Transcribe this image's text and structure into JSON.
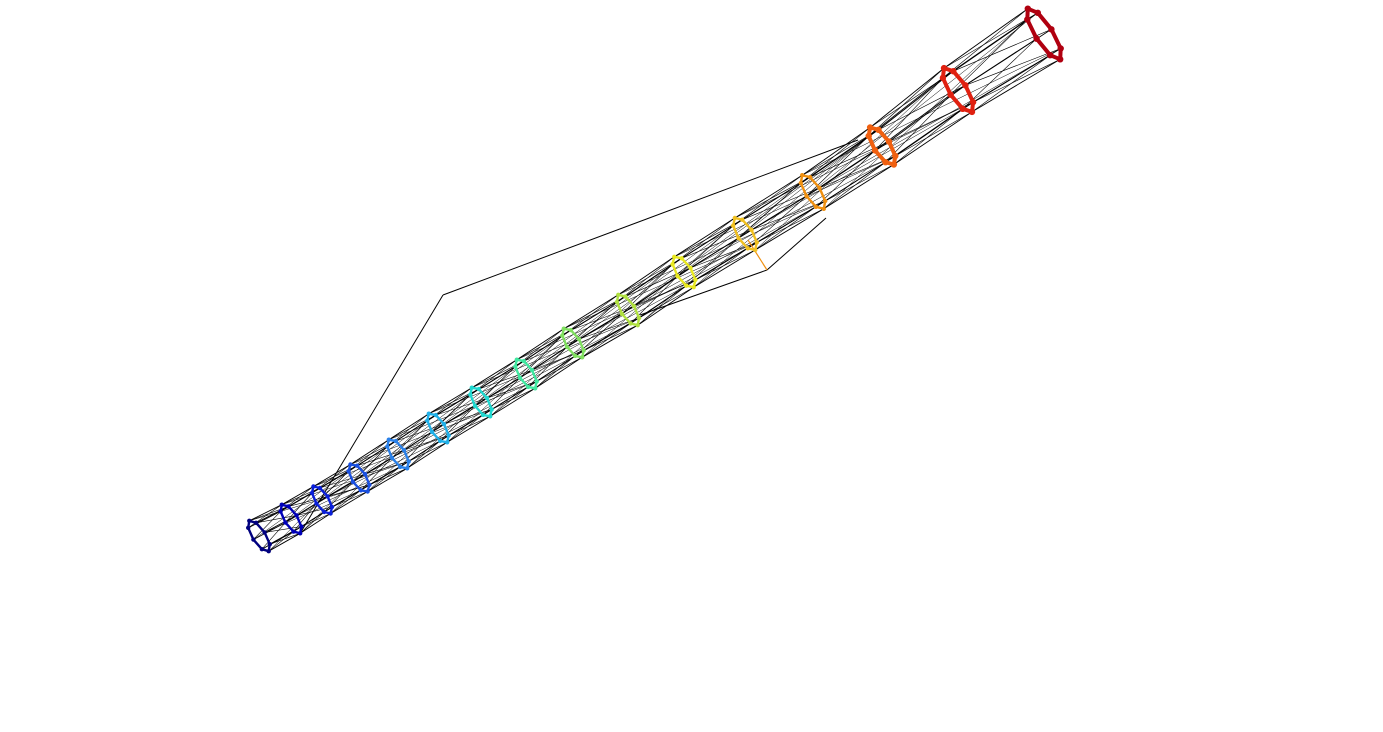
{
  "diagram": {
    "kind": "3d-wireframe-mesh",
    "background_color": "#ffffff",
    "edge_color": "#000000",
    "colormap": "jet",
    "ring_count": 16,
    "ring_colors": [
      "#00007f",
      "#0000b8",
      "#0a1fd8",
      "#1a50e0",
      "#2a80e8",
      "#20b0e8",
      "#20d8d0",
      "#40e8a0",
      "#80e060",
      "#b0e040",
      "#e8e820",
      "#f0c020",
      "#f09010",
      "#f06010",
      "#e02010",
      "#b00010"
    ]
  }
}
